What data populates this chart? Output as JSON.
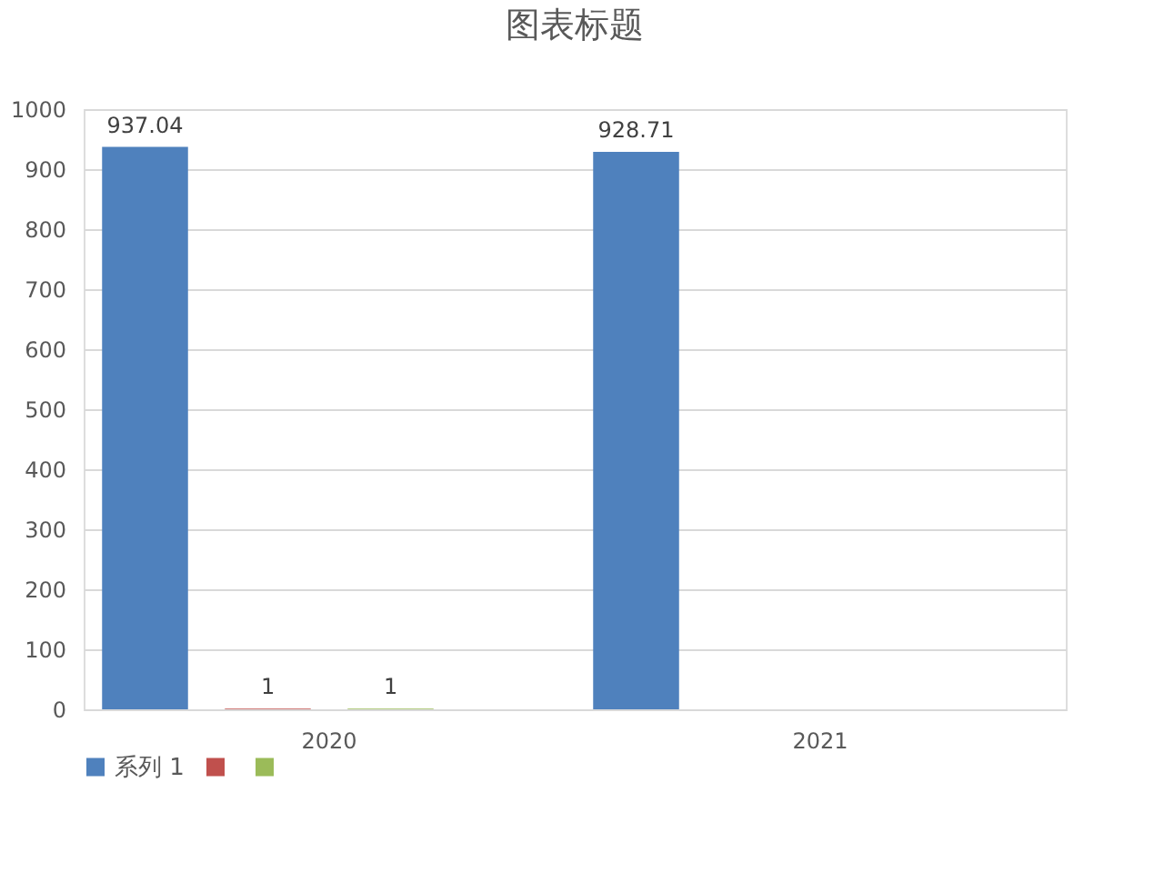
{
  "chart_data": {
    "type": "bar",
    "title": "图表标题",
    "categories": [
      "2020",
      "2021"
    ],
    "series": [
      {
        "name": "系列 1",
        "color": "#4f81bd",
        "values": [
          937.04,
          928.71
        ]
      },
      {
        "color": "#c0504d",
        "values": [
          1,
          null
        ]
      },
      {
        "color": "#9bbb59",
        "values": [
          1,
          null
        ]
      }
    ],
    "ylim": [
      0,
      1000
    ],
    "yticks": [
      0,
      100,
      200,
      300,
      400,
      500,
      600,
      700,
      800,
      900,
      1000
    ],
    "grid": "y",
    "legend": "bottom",
    "data_labels": true
  }
}
